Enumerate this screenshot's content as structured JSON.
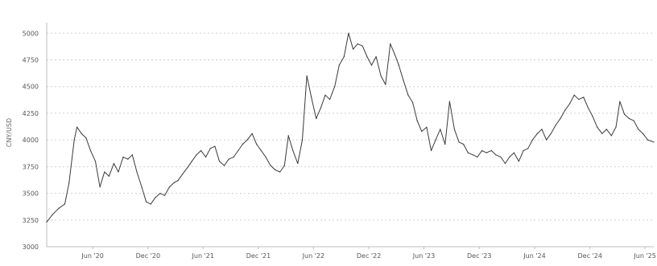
{
  "chart_data": {
    "type": "line",
    "ylabel": "CNY/USD",
    "ylim": [
      3000,
      5100
    ],
    "yticks": [
      "5000",
      "4750",
      "4500",
      "4250",
      "4000",
      "3750",
      "3500",
      "3250",
      "3000"
    ],
    "xlim": [
      "2020-01-01",
      "2025-06-30"
    ],
    "xticks": [
      {
        "date": "2020-06-01",
        "label": "Jun '20"
      },
      {
        "date": "2020-12-01",
        "label": "Dec '20"
      },
      {
        "date": "2021-06-01",
        "label": "Jun '21"
      },
      {
        "date": "2021-12-01",
        "label": "Dec '21"
      },
      {
        "date": "2022-06-01",
        "label": "Jun '22"
      },
      {
        "date": "2022-12-01",
        "label": "Dec '22"
      },
      {
        "date": "2023-06-01",
        "label": "Jun '23"
      },
      {
        "date": "2023-12-01",
        "label": "Dec '23"
      },
      {
        "date": "2024-06-01",
        "label": "Jun '24"
      },
      {
        "date": "2024-12-01",
        "label": "Dec '24"
      },
      {
        "date": "2025-06-01",
        "label": "Jun '25"
      }
    ],
    "grid": true,
    "series": [
      {
        "points": [
          [
            "2020-01-01",
            3230
          ],
          [
            "2020-01-20",
            3300
          ],
          [
            "2020-02-10",
            3360
          ],
          [
            "2020-03-01",
            3400
          ],
          [
            "2020-03-15",
            3600
          ],
          [
            "2020-04-01",
            4000
          ],
          [
            "2020-04-10",
            4120
          ],
          [
            "2020-04-25",
            4060
          ],
          [
            "2020-05-10",
            4020
          ],
          [
            "2020-05-25",
            3900
          ],
          [
            "2020-06-10",
            3800
          ],
          [
            "2020-06-25",
            3560
          ],
          [
            "2020-07-10",
            3700
          ],
          [
            "2020-07-25",
            3660
          ],
          [
            "2020-08-10",
            3780
          ],
          [
            "2020-08-25",
            3700
          ],
          [
            "2020-09-10",
            3840
          ],
          [
            "2020-09-25",
            3820
          ],
          [
            "2020-10-10",
            3860
          ],
          [
            "2020-10-25",
            3700
          ],
          [
            "2020-11-10",
            3560
          ],
          [
            "2020-11-25",
            3420
          ],
          [
            "2020-12-10",
            3400
          ],
          [
            "2020-12-25",
            3460
          ],
          [
            "2021-01-10",
            3500
          ],
          [
            "2021-01-25",
            3480
          ],
          [
            "2021-02-10",
            3560
          ],
          [
            "2021-02-25",
            3600
          ],
          [
            "2021-03-10",
            3620
          ],
          [
            "2021-03-25",
            3680
          ],
          [
            "2021-04-10",
            3740
          ],
          [
            "2021-04-25",
            3800
          ],
          [
            "2021-05-10",
            3860
          ],
          [
            "2021-05-25",
            3900
          ],
          [
            "2021-06-10",
            3840
          ],
          [
            "2021-06-25",
            3920
          ],
          [
            "2021-07-10",
            3940
          ],
          [
            "2021-07-25",
            3800
          ],
          [
            "2021-08-10",
            3760
          ],
          [
            "2021-08-25",
            3820
          ],
          [
            "2021-09-10",
            3840
          ],
          [
            "2021-09-25",
            3900
          ],
          [
            "2021-10-10",
            3960
          ],
          [
            "2021-10-25",
            4000
          ],
          [
            "2021-11-10",
            4060
          ],
          [
            "2021-11-25",
            3960
          ],
          [
            "2021-12-10",
            3900
          ],
          [
            "2021-12-25",
            3840
          ],
          [
            "2022-01-10",
            3760
          ],
          [
            "2022-01-25",
            3720
          ],
          [
            "2022-02-10",
            3700
          ],
          [
            "2022-02-25",
            3760
          ],
          [
            "2022-03-10",
            4040
          ],
          [
            "2022-03-25",
            3900
          ],
          [
            "2022-04-10",
            3780
          ],
          [
            "2022-04-25",
            4000
          ],
          [
            "2022-05-10",
            4600
          ],
          [
            "2022-05-25",
            4400
          ],
          [
            "2022-06-10",
            4200
          ],
          [
            "2022-06-25",
            4300
          ],
          [
            "2022-07-10",
            4420
          ],
          [
            "2022-07-25",
            4380
          ],
          [
            "2022-08-10",
            4500
          ],
          [
            "2022-08-25",
            4700
          ],
          [
            "2022-09-10",
            4780
          ],
          [
            "2022-09-25",
            5000
          ],
          [
            "2022-10-10",
            4850
          ],
          [
            "2022-10-25",
            4900
          ],
          [
            "2022-11-10",
            4880
          ],
          [
            "2022-11-25",
            4780
          ],
          [
            "2022-12-10",
            4700
          ],
          [
            "2022-12-25",
            4780
          ],
          [
            "2023-01-10",
            4600
          ],
          [
            "2023-01-25",
            4520
          ],
          [
            "2023-02-10",
            4900
          ],
          [
            "2023-02-25",
            4800
          ],
          [
            "2023-03-10",
            4700
          ],
          [
            "2023-03-25",
            4560
          ],
          [
            "2023-04-10",
            4420
          ],
          [
            "2023-04-25",
            4350
          ],
          [
            "2023-05-10",
            4180
          ],
          [
            "2023-05-25",
            4080
          ],
          [
            "2023-06-10",
            4120
          ],
          [
            "2023-06-25",
            3900
          ],
          [
            "2023-07-10",
            4000
          ],
          [
            "2023-07-25",
            4100
          ],
          [
            "2023-08-10",
            3960
          ],
          [
            "2023-08-25",
            4360
          ],
          [
            "2023-09-10",
            4100
          ],
          [
            "2023-09-25",
            3980
          ],
          [
            "2023-10-10",
            3960
          ],
          [
            "2023-10-25",
            3880
          ],
          [
            "2023-11-10",
            3860
          ],
          [
            "2023-11-25",
            3840
          ],
          [
            "2023-12-10",
            3900
          ],
          [
            "2023-12-25",
            3880
          ],
          [
            "2024-01-10",
            3900
          ],
          [
            "2024-01-25",
            3860
          ],
          [
            "2024-02-10",
            3840
          ],
          [
            "2024-02-25",
            3780
          ],
          [
            "2024-03-10",
            3840
          ],
          [
            "2024-03-25",
            3880
          ],
          [
            "2024-04-10",
            3800
          ],
          [
            "2024-04-25",
            3900
          ],
          [
            "2024-05-10",
            3920
          ],
          [
            "2024-05-25",
            4000
          ],
          [
            "2024-06-10",
            4060
          ],
          [
            "2024-06-25",
            4100
          ],
          [
            "2024-07-10",
            4000
          ],
          [
            "2024-07-25",
            4060
          ],
          [
            "2024-08-10",
            4140
          ],
          [
            "2024-08-25",
            4200
          ],
          [
            "2024-09-10",
            4280
          ],
          [
            "2024-09-25",
            4340
          ],
          [
            "2024-10-10",
            4420
          ],
          [
            "2024-10-25",
            4380
          ],
          [
            "2024-11-10",
            4400
          ],
          [
            "2024-11-25",
            4300
          ],
          [
            "2024-12-10",
            4220
          ],
          [
            "2024-12-25",
            4120
          ],
          [
            "2025-01-10",
            4060
          ],
          [
            "2025-01-25",
            4100
          ],
          [
            "2025-02-10",
            4040
          ],
          [
            "2025-02-25",
            4120
          ],
          [
            "2025-03-10",
            4360
          ],
          [
            "2025-03-25",
            4240
          ],
          [
            "2025-04-10",
            4200
          ],
          [
            "2025-04-25",
            4180
          ],
          [
            "2025-05-10",
            4100
          ],
          [
            "2025-05-25",
            4060
          ],
          [
            "2025-06-10",
            4000
          ],
          [
            "2025-06-30",
            3980
          ]
        ]
      }
    ]
  }
}
